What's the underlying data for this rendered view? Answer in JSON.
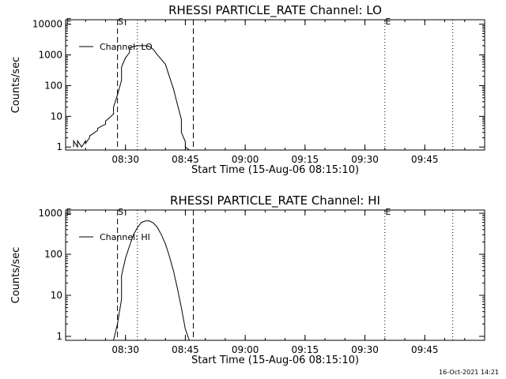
{
  "footer": {
    "timestamp": "16-Oct-2021 14:21"
  },
  "chart_data": [
    {
      "type": "line",
      "title": "RHESSI PARTICLE_RATE Channel: LO",
      "xlabel": "Start Time (15-Aug-06 08:15:10)",
      "ylabel": "Counts/sec",
      "y_scale": "log",
      "xlim": [
        "08:15",
        "10:00"
      ],
      "ylim": [
        0.8,
        14000
      ],
      "x_ticks": [
        "08:30",
        "08:45",
        "09:00",
        "09:15",
        "09:30",
        "09:45"
      ],
      "y_ticks": [
        {
          "value": 1,
          "label": "1"
        },
        {
          "value": 10,
          "label": "10"
        },
        {
          "value": 100,
          "label": "100"
        },
        {
          "value": 1000,
          "label": "1000"
        },
        {
          "value": 10000,
          "label": "10000"
        }
      ],
      "legend": {
        "label": "Channel: LO",
        "position": "top-left"
      },
      "markers": [
        {
          "time": "08:15",
          "label": "E",
          "style": "dashed"
        },
        {
          "time": "08:28",
          "label": "S",
          "style": "dashed"
        },
        {
          "time": "08:47",
          "label": "",
          "style": "dashed"
        },
        {
          "time": "09:35",
          "label": "E",
          "style": "dotted"
        },
        {
          "time": "08:33",
          "label": "",
          "style": "dotted"
        },
        {
          "time": "09:52",
          "label": "",
          "style": "dotted"
        }
      ],
      "series": [
        {
          "name": "Channel: LO",
          "x": [
            "08:17",
            "08:17",
            "08:18",
            "08:18",
            "08:19",
            "08:20",
            "08:20",
            "08:21",
            "08:21",
            "08:22",
            "08:23",
            "08:23",
            "08:24",
            "08:25",
            "08:25",
            "08:26",
            "08:27",
            "08:27",
            "08:28",
            "08:29",
            "08:29",
            "08:30",
            "08:31",
            "08:31",
            "08:32",
            "08:33",
            "08:35",
            "08:36",
            "08:37",
            "08:38",
            "08:40",
            "08:41",
            "08:42",
            "08:43",
            "08:44",
            "08:44",
            "08:45",
            "08:45",
            "08:46"
          ],
          "values": [
            1,
            1.6,
            1,
            1.6,
            1,
            1.6,
            1.3,
            2,
            2.3,
            2.8,
            3.5,
            4,
            4.8,
            5.5,
            7,
            9,
            12,
            20,
            50,
            150,
            400,
            800,
            1200,
            1600,
            1900,
            2000,
            2000,
            1900,
            1500,
            1000,
            500,
            200,
            80,
            25,
            8,
            3,
            1.5,
            1,
            0.8
          ]
        }
      ]
    },
    {
      "type": "line",
      "title": "RHESSI PARTICLE_RATE Channel: HI",
      "xlabel": "Start Time (15-Aug-06 08:15:10)",
      "ylabel": "Counts/sec",
      "y_scale": "log",
      "xlim": [
        "08:15",
        "10:00"
      ],
      "ylim": [
        0.8,
        1200
      ],
      "x_ticks": [
        "08:30",
        "08:45",
        "09:00",
        "09:15",
        "09:30",
        "09:45"
      ],
      "y_ticks": [
        {
          "value": 1,
          "label": "1"
        },
        {
          "value": 10,
          "label": "10"
        },
        {
          "value": 100,
          "label": "100"
        },
        {
          "value": 1000,
          "label": "1000"
        }
      ],
      "legend": {
        "label": "Channel: HI",
        "position": "top-left"
      },
      "markers": [
        {
          "time": "08:15",
          "label": "E",
          "style": "dashed"
        },
        {
          "time": "08:28",
          "label": "S",
          "style": "dashed"
        },
        {
          "time": "08:47",
          "label": "",
          "style": "dashed"
        },
        {
          "time": "09:35",
          "label": "E",
          "style": "dotted"
        },
        {
          "time": "08:33",
          "label": "",
          "style": "dotted"
        },
        {
          "time": "09:52",
          "label": "",
          "style": "dotted"
        }
      ],
      "series": [
        {
          "name": "Channel: HI",
          "x": [
            "08:27",
            "08:28",
            "08:29",
            "08:29",
            "08:30",
            "08:31",
            "08:32",
            "08:33",
            "08:34",
            "08:35",
            "08:36",
            "08:37",
            "08:38",
            "08:39",
            "08:40",
            "08:41",
            "08:42",
            "08:43",
            "08:44",
            "08:45",
            "08:46"
          ],
          "values": [
            0.8,
            2,
            8,
            30,
            80,
            160,
            300,
            450,
            600,
            650,
            650,
            580,
            450,
            300,
            180,
            90,
            40,
            15,
            5,
            1.5,
            0.8
          ]
        }
      ]
    }
  ]
}
